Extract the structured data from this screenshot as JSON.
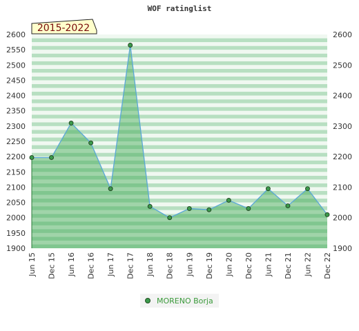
{
  "chart_data": {
    "type": "area",
    "title": "WOF ratinglist",
    "period_badge": "2015-2022",
    "xlabel": "",
    "ylabel": "",
    "ylim": [
      1900,
      2600
    ],
    "y_ticks": [
      1900,
      1950,
      2000,
      2050,
      2100,
      2150,
      2200,
      2250,
      2300,
      2350,
      2400,
      2450,
      2500,
      2550,
      2600
    ],
    "y_ticks_right": [
      1900,
      2000,
      2100,
      2200,
      2300,
      2400,
      2500,
      2600
    ],
    "categories": [
      "Jun 15",
      "Dec 15",
      "Jun 16",
      "Dec 16",
      "Jun 17",
      "Dec 17",
      "Jun 18",
      "Dec 18",
      "Jun 19",
      "Dec 19",
      "Jun 20",
      "Dec 20",
      "Jun 21",
      "Dec 21",
      "Jun 22",
      "Dec 22"
    ],
    "series": [
      {
        "name": "MORENO Borja",
        "values": [
          2197,
          2197,
          2310,
          2245,
          2095,
          2565,
          2037,
          2000,
          2030,
          2026,
          2057,
          2030,
          2095,
          2039,
          2095,
          2010
        ]
      }
    ],
    "grid": true,
    "legend_position": "bottom-center",
    "colors": {
      "line": "#5aa7d8",
      "area": "#3da852",
      "marker": "#3c9a4c",
      "band_dark": "#b7dfc1",
      "band_light": "#f0f8f1",
      "badge_fill": "#ffffcc",
      "badge_text": "#7a0a0a",
      "legend_text": "#3a9a3a"
    }
  }
}
